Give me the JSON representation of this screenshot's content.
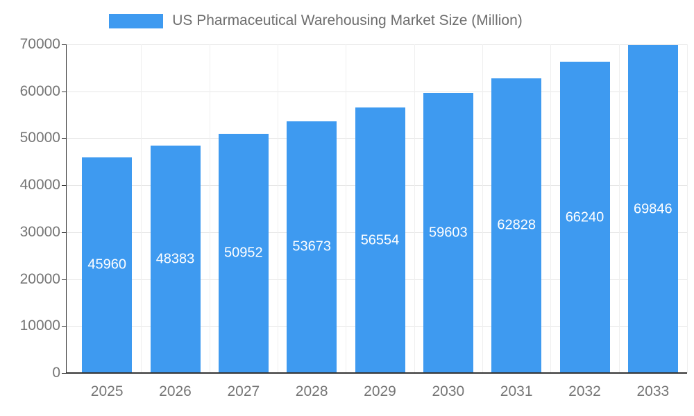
{
  "chart_data": {
    "type": "bar",
    "title": "US Pharmaceutical Warehousing Market Size (Million)",
    "legend_position": "top",
    "categories": [
      "2025",
      "2026",
      "2027",
      "2028",
      "2029",
      "2030",
      "2031",
      "2032",
      "2033"
    ],
    "values": [
      45960,
      48383,
      50952,
      53673,
      56554,
      59603,
      62828,
      66240,
      69846
    ],
    "series": [
      {
        "name": "US Pharmaceutical Warehousing Market Size (Million)",
        "values": [
          45960,
          48383,
          50952,
          53673,
          56554,
          59603,
          62828,
          66240,
          69846
        ]
      }
    ],
    "xlabel": "",
    "ylabel": "",
    "ylim": [
      0,
      70000
    ],
    "yticks": [
      0,
      10000,
      20000,
      30000,
      40000,
      50000,
      60000,
      70000
    ],
    "grid": true,
    "bar_color": "#3E9AF0",
    "value_label_color": "#ffffff",
    "axis_text_color": "#757575",
    "gridline_color": "#e6e6e6",
    "axis_line_color": "#333333"
  }
}
